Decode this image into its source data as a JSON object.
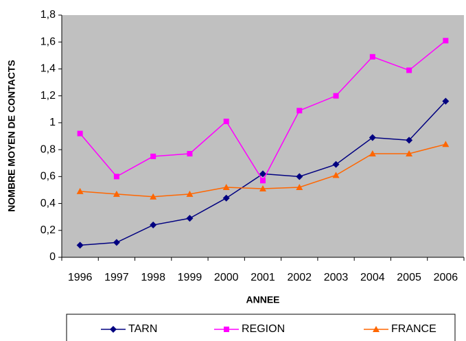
{
  "chart_data": {
    "type": "line",
    "x_label": "ANNEE",
    "y_label": "NOMBRE MOYEN DE CONTACTS",
    "categories": [
      "1996",
      "1997",
      "1998",
      "1999",
      "2000",
      "2001",
      "2002",
      "2003",
      "2004",
      "2005",
      "2006"
    ],
    "series": [
      {
        "name": "TARN",
        "color": "#000080",
        "marker": "diamond",
        "values": [
          0.09,
          0.11,
          0.24,
          0.29,
          0.44,
          0.62,
          0.6,
          0.69,
          0.89,
          0.87,
          1.16
        ]
      },
      {
        "name": "REGION",
        "color": "#ff00ff",
        "marker": "square",
        "values": [
          0.92,
          0.6,
          0.75,
          0.77,
          1.01,
          0.57,
          1.09,
          1.2,
          1.49,
          1.39,
          1.61
        ]
      },
      {
        "name": "FRANCE",
        "color": "#ff6600",
        "marker": "triangle",
        "values": [
          0.49,
          0.47,
          0.45,
          0.47,
          0.52,
          0.51,
          0.52,
          0.61,
          0.77,
          0.77,
          0.84
        ]
      }
    ],
    "ylim": [
      0,
      1.8
    ],
    "yticks": [
      0,
      {
        "value": 0.2,
        "label": "0,2"
      },
      {
        "value": 0.4,
        "label": "0,4"
      },
      {
        "value": 0.6,
        "label": "0,6"
      },
      {
        "value": 0.8,
        "label": "0,8"
      },
      1,
      {
        "value": 1.2,
        "label": "1,2"
      },
      {
        "value": 1.4,
        "label": "1,4"
      },
      {
        "value": 1.6,
        "label": "1,6"
      },
      {
        "value": 1.8,
        "label": "1,8"
      }
    ],
    "grid": false,
    "legend": "bottom",
    "plot_background": "#c0c0c0"
  }
}
